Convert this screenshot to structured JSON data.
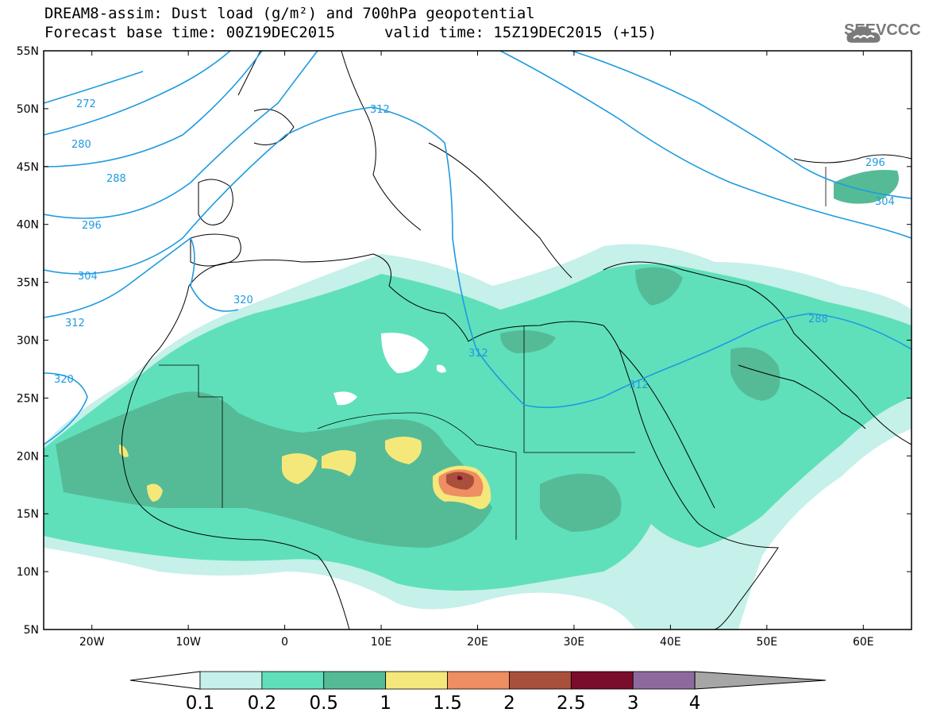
{
  "header": {
    "title_line1": "DREAM8-assim: Dust load (g/m²) and 700hPa geopotential",
    "forecast_base": "Forecast base time: 00Z19DEC2015",
    "valid_time": "valid time: 15Z19DEC2015 (+15)"
  },
  "logo": {
    "text": "SEEVCCC",
    "icon": "cloud-logo-icon"
  },
  "map": {
    "lon_range": [
      -25,
      65
    ],
    "lat_range": [
      5,
      55
    ],
    "lon_ticks": [
      "20W",
      "10W",
      "0",
      "10E",
      "20E",
      "30E",
      "40E",
      "50E",
      "60E"
    ],
    "lat_ticks": [
      "55N",
      "50N",
      "45N",
      "40N",
      "35N",
      "30N",
      "25N",
      "20N",
      "15N",
      "10N",
      "5N"
    ],
    "contour_labels": [
      "272",
      "280",
      "288",
      "296",
      "304",
      "312",
      "320",
      "320",
      "312",
      "312",
      "312",
      "288",
      "296",
      "304"
    ],
    "colors": {
      "land_fill": "#ffffff",
      "coast": "#000000",
      "geopotential": "#1e9be0"
    }
  },
  "colorbar": {
    "labels": [
      "0.1",
      "0.2",
      "0.5",
      "1",
      "1.5",
      "2",
      "2.5",
      "3",
      "4"
    ],
    "colors": [
      "#c6f0ea",
      "#5fe0bb",
      "#55bb96",
      "#f5e87a",
      "#ee8e62",
      "#a9503c",
      "#7a0c2c",
      "#8d6a9e",
      "#a6a6a6"
    ]
  }
}
